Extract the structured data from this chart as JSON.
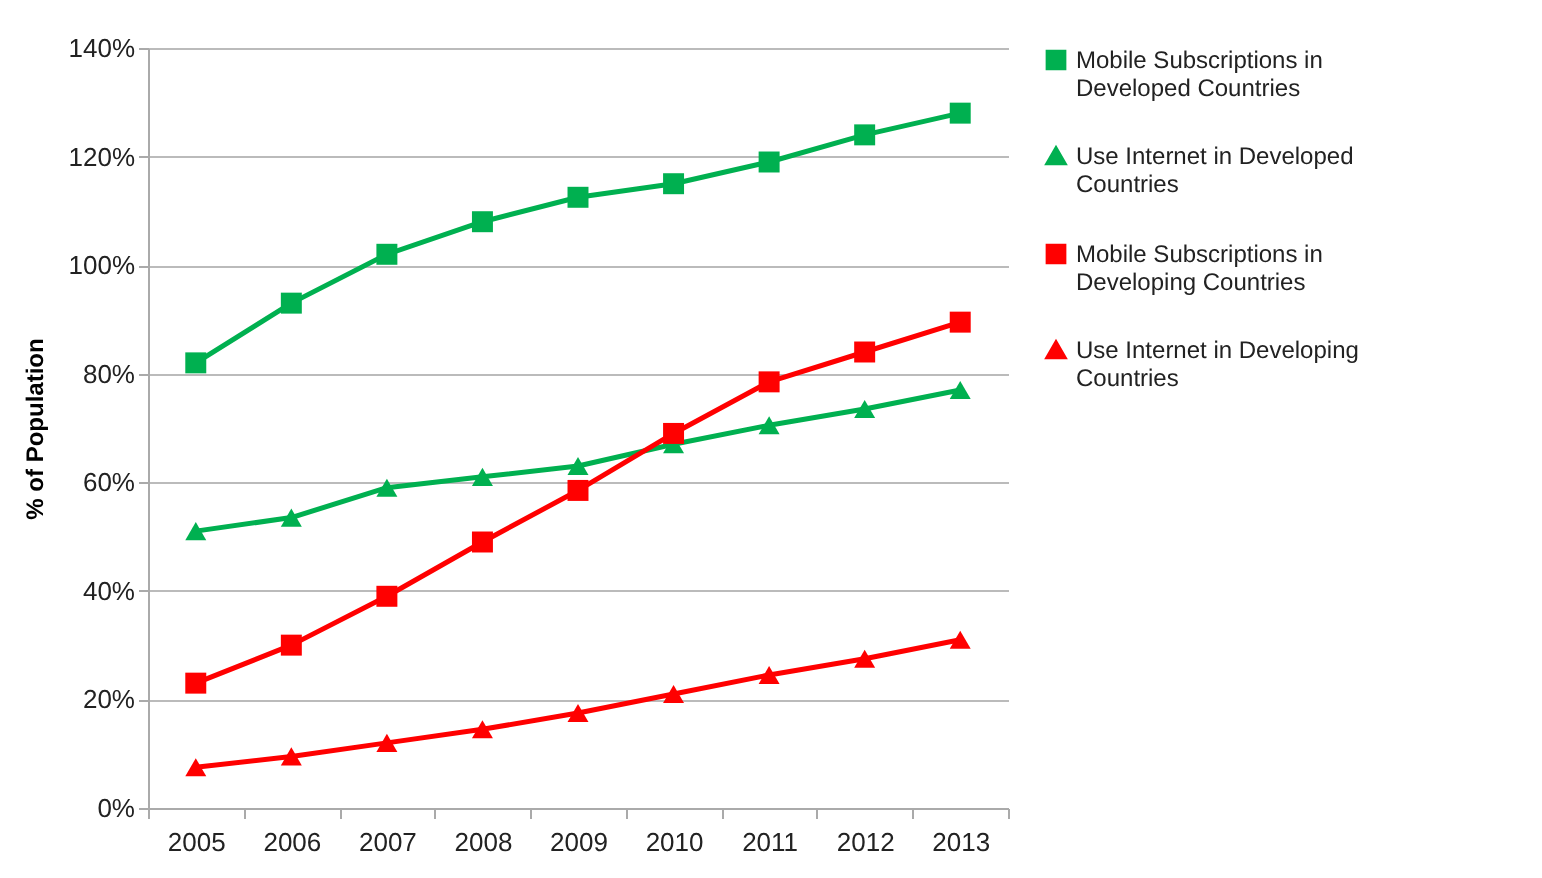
{
  "chart_data": {
    "type": "line",
    "ylabel": "% of Population",
    "categories": [
      "2005",
      "2006",
      "2007",
      "2008",
      "2009",
      "2010",
      "2011",
      "2012",
      "2013"
    ],
    "ylim": [
      0,
      140
    ],
    "yticks": [
      {
        "value": 0,
        "label": "0%"
      },
      {
        "value": 20,
        "label": "20%"
      },
      {
        "value": 40,
        "label": "40%"
      },
      {
        "value": 60,
        "label": "60%"
      },
      {
        "value": 80,
        "label": "80%"
      },
      {
        "value": 100,
        "label": "100%"
      },
      {
        "value": 120,
        "label": "120%"
      },
      {
        "value": 140,
        "label": "140%"
      }
    ],
    "grid": "y",
    "legend": "right",
    "series": [
      {
        "name": "Mobile Subscriptions in Developed Countries",
        "color": "#00b050",
        "marker": "square",
        "values": [
          82,
          93,
          102,
          108,
          112.5,
          115,
          119,
          124,
          128
        ]
      },
      {
        "name": "Use Internet in Developed Countries",
        "color": "#00b050",
        "marker": "triangle",
        "values": [
          51,
          53.5,
          59,
          61,
          63,
          67,
          70.5,
          73.5,
          77
        ]
      },
      {
        "name": "Mobile Subscriptions in Developing Countries",
        "color": "#ff0000",
        "marker": "square",
        "values": [
          23,
          30,
          39,
          49,
          58.5,
          69,
          78.5,
          84,
          89.5
        ]
      },
      {
        "name": "Use Internet in Developing Countries",
        "color": "#ff0000",
        "marker": "triangle",
        "values": [
          7.5,
          9.5,
          12,
          14.5,
          17.5,
          21,
          24.5,
          27.5,
          31
        ]
      }
    ]
  }
}
